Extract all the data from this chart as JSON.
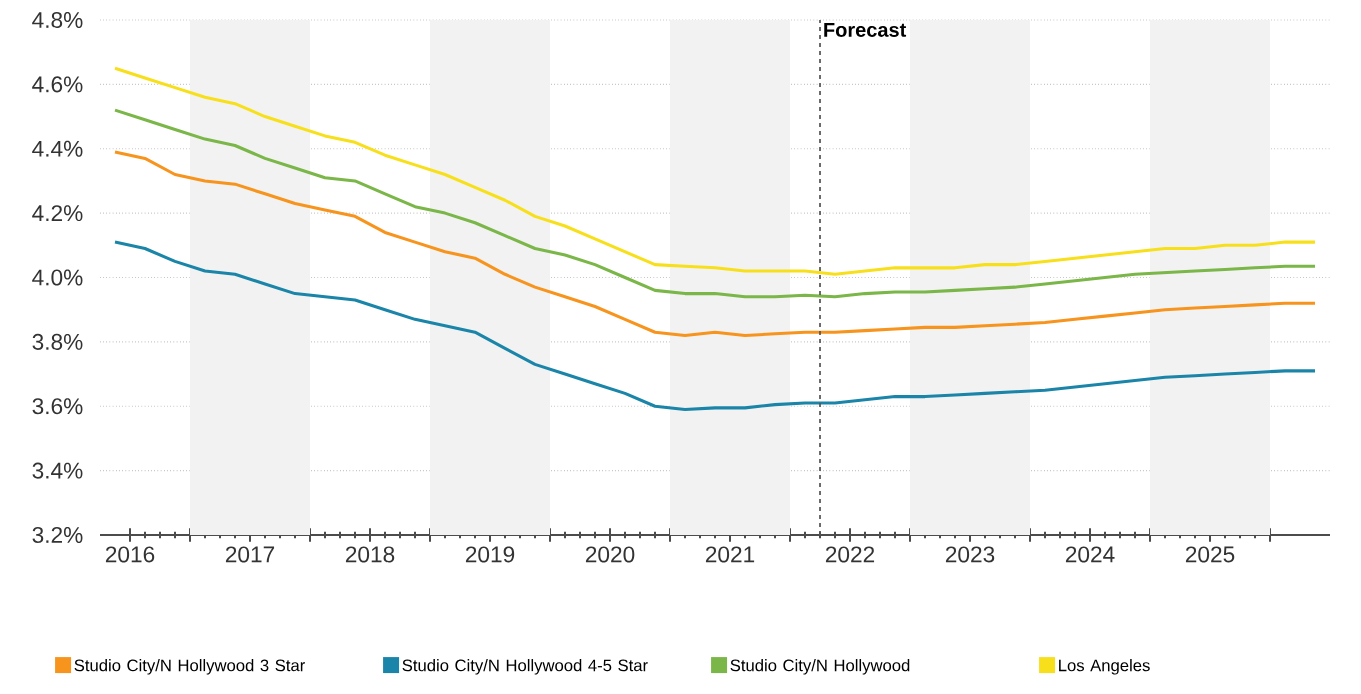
{
  "chart_data": {
    "type": "line",
    "x": [
      2016.375,
      2016.625,
      2016.875,
      2017.125,
      2017.375,
      2017.625,
      2017.875,
      2018.125,
      2018.375,
      2018.625,
      2018.875,
      2019.125,
      2019.375,
      2019.625,
      2019.875,
      2020.125,
      2020.375,
      2020.625,
      2020.875,
      2021.125,
      2021.375,
      2021.625,
      2021.875,
      2022.125,
      2022.375,
      2022.625,
      2022.875,
      2023.125,
      2023.375,
      2023.625,
      2023.875,
      2024.125,
      2024.375,
      2024.625,
      2024.875,
      2025.125,
      2025.375,
      2025.625,
      2025.875,
      2026.125,
      2026.375
    ],
    "series": [
      {
        "name": "Studio City/N Hollywood 3 Star",
        "color": "#f7941d",
        "values": [
          4.39,
          4.37,
          4.32,
          4.3,
          4.29,
          4.26,
          4.23,
          4.21,
          4.19,
          4.14,
          4.11,
          4.08,
          4.06,
          4.01,
          3.97,
          3.94,
          3.91,
          3.87,
          3.83,
          3.82,
          3.83,
          3.82,
          3.825,
          3.83,
          3.83,
          3.835,
          3.84,
          3.845,
          3.845,
          3.85,
          3.855,
          3.86,
          3.87,
          3.88,
          3.89,
          3.9,
          3.905,
          3.91,
          3.915,
          3.92,
          3.92
        ]
      },
      {
        "name": "Studio City/N Hollywood 4-5 Star",
        "color": "#1a85a8",
        "values": [
          4.11,
          4.09,
          4.05,
          4.02,
          4.01,
          3.98,
          3.95,
          3.94,
          3.93,
          3.9,
          3.87,
          3.85,
          3.83,
          3.78,
          3.73,
          3.7,
          3.67,
          3.64,
          3.6,
          3.59,
          3.595,
          3.595,
          3.605,
          3.61,
          3.61,
          3.62,
          3.63,
          3.63,
          3.635,
          3.64,
          3.645,
          3.65,
          3.66,
          3.67,
          3.68,
          3.69,
          3.695,
          3.7,
          3.705,
          3.71,
          3.71
        ]
      },
      {
        "name": "Studio City/N Hollywood",
        "color": "#7ab648",
        "values": [
          4.52,
          4.49,
          4.46,
          4.43,
          4.41,
          4.37,
          4.34,
          4.31,
          4.3,
          4.26,
          4.22,
          4.2,
          4.17,
          4.13,
          4.09,
          4.07,
          4.04,
          4.0,
          3.96,
          3.95,
          3.95,
          3.94,
          3.94,
          3.945,
          3.94,
          3.95,
          3.955,
          3.955,
          3.96,
          3.965,
          3.97,
          3.98,
          3.99,
          4.0,
          4.01,
          4.015,
          4.02,
          4.025,
          4.03,
          4.035,
          4.035
        ]
      },
      {
        "name": "Los Angeles",
        "color": "#f7e01b",
        "values": [
          4.65,
          4.62,
          4.59,
          4.56,
          4.54,
          4.5,
          4.47,
          4.44,
          4.42,
          4.38,
          4.35,
          4.32,
          4.28,
          4.24,
          4.19,
          4.16,
          4.12,
          4.08,
          4.04,
          4.035,
          4.03,
          4.02,
          4.02,
          4.02,
          4.01,
          4.02,
          4.03,
          4.03,
          4.03,
          4.04,
          4.04,
          4.05,
          4.06,
          4.07,
          4.08,
          4.09,
          4.09,
          4.1,
          4.1,
          4.11,
          4.11
        ]
      }
    ],
    "xlim": [
      2016.25,
      2026.5
    ],
    "xticks": [
      {
        "value": 2016.5,
        "label": "2016"
      },
      {
        "value": 2017,
        "label": null
      },
      {
        "value": 2017.5,
        "label": "2017"
      },
      {
        "value": 2018,
        "label": null
      },
      {
        "value": 2018.5,
        "label": "2018"
      },
      {
        "value": 2019,
        "label": null
      },
      {
        "value": 2019.5,
        "label": "2019"
      },
      {
        "value": 2020,
        "label": null
      },
      {
        "value": 2020.5,
        "label": "2020"
      },
      {
        "value": 2021,
        "label": null
      },
      {
        "value": 2021.5,
        "label": "2021"
      },
      {
        "value": 2022,
        "label": null
      },
      {
        "value": 2022.5,
        "label": "2022"
      },
      {
        "value": 2023,
        "label": null
      },
      {
        "value": 2023.5,
        "label": "2023"
      },
      {
        "value": 2024,
        "label": null
      },
      {
        "value": 2024.5,
        "label": "2024"
      },
      {
        "value": 2025,
        "label": null
      },
      {
        "value": 2025.5,
        "label": "2025"
      },
      {
        "value": 2026,
        "label": null
      }
    ],
    "ylim": [
      3.2,
      4.8
    ],
    "yticks": [
      {
        "value": 3.2,
        "label": "3.2%"
      },
      {
        "value": 3.4,
        "label": "3.4%"
      },
      {
        "value": 3.6,
        "label": "3.6%"
      },
      {
        "value": 3.8,
        "label": "3.8%"
      },
      {
        "value": 4.0,
        "label": "4.0%"
      },
      {
        "value": 4.2,
        "label": "4.2%"
      },
      {
        "value": 4.4,
        "label": "4.4%"
      },
      {
        "value": 4.6,
        "label": "4.6%"
      },
      {
        "value": 4.8,
        "label": "4.8%"
      }
    ],
    "bands": [
      {
        "axis": "x",
        "from": 2017,
        "to": 2018,
        "color": "#f2f2f2"
      },
      {
        "axis": "x",
        "from": 2019,
        "to": 2020,
        "color": "#f2f2f2"
      },
      {
        "axis": "x",
        "from": 2021,
        "to": 2022,
        "color": "#f2f2f2"
      },
      {
        "axis": "x",
        "from": 2023,
        "to": 2024,
        "color": "#f2f2f2"
      },
      {
        "axis": "x",
        "from": 2025,
        "to": 2026,
        "color": "#f2f2f2"
      }
    ],
    "ref_lines": [
      {
        "axis": "x",
        "value": 2022.25,
        "label": "Forecast",
        "color": "#555555",
        "line_style": "dashed"
      }
    ],
    "grid": "y",
    "legend": "bottom"
  }
}
